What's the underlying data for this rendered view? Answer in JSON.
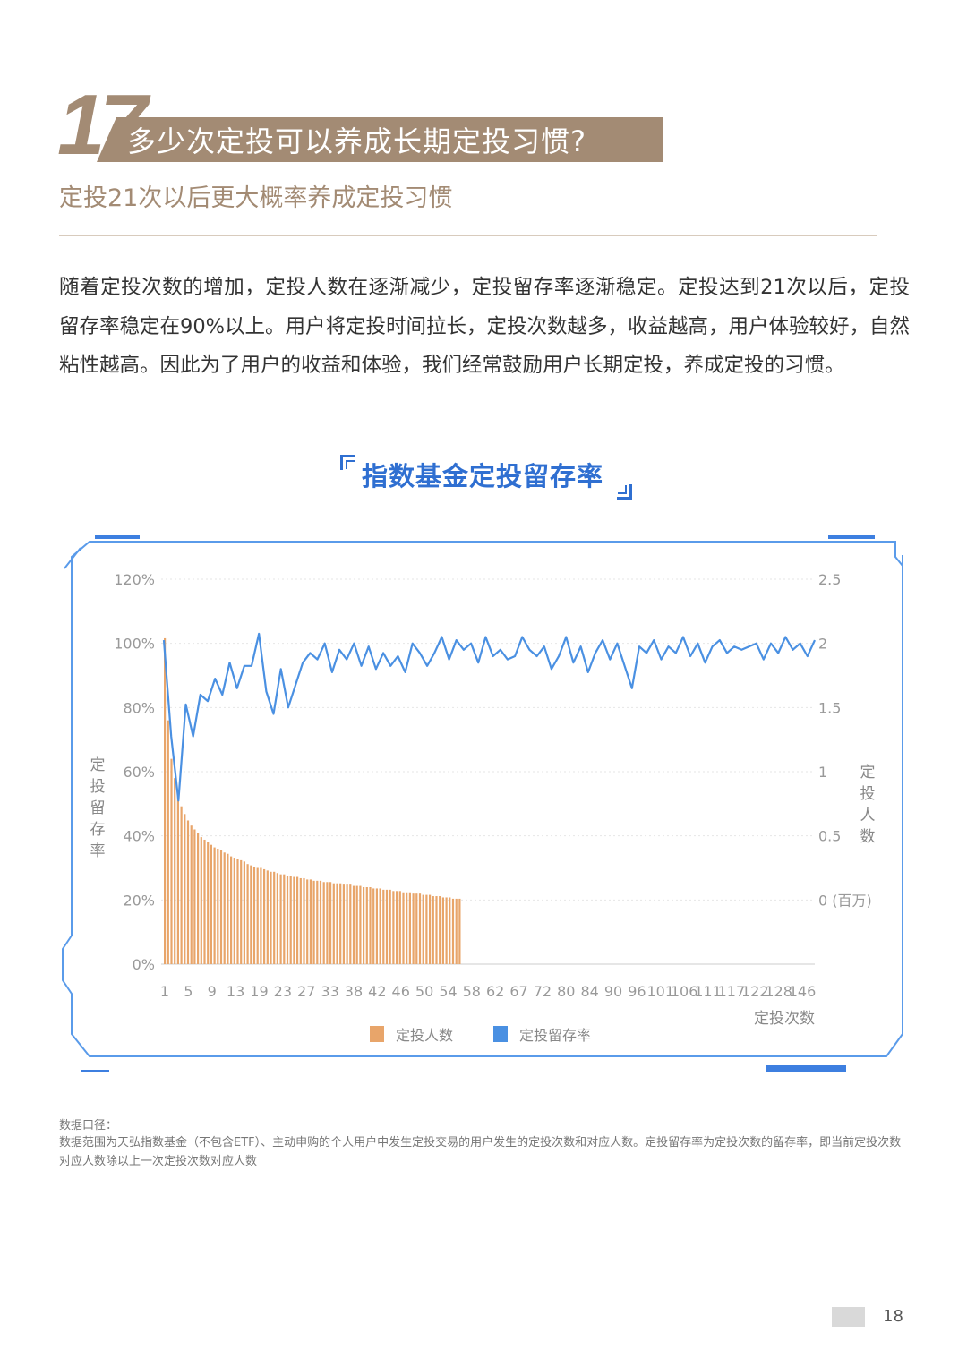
{
  "section": {
    "number": "17",
    "title": "多少次定投可以养成长期定投习惯?",
    "subtitle": "定投21次以后更大概率养成定投习惯"
  },
  "body_text": "随着定投次数的增加，定投人数在逐渐减少，定投留存率逐渐稳定。定投达到21次以后，定投留存率稳定在90%以上。用户将定投时间拉长，定投次数越多，收益越高，用户体验较好，自然粘性越高。因此为了用户的收益和体验，我们经常鼓励用户长期定投，养成定投的习惯。",
  "colors": {
    "accent_brown": "#a38b74",
    "accent_blue": "#2f6fd1",
    "bar_orange": "#e8a56a",
    "line_blue": "#4a90e2",
    "frame_blue": "#5a9bea"
  },
  "chart_data": {
    "type": "bar+line",
    "title": "指数基金定投留存率",
    "xlabel": "定投次数",
    "ylabel_left": "定投留存率",
    "ylabel_right": "定投人数",
    "right_unit": "(百万)",
    "ylim_left": [
      0,
      1.2
    ],
    "ylim_right": [
      -0.5,
      2.5
    ],
    "left_ticks": [
      "0%",
      "20%",
      "40%",
      "60%",
      "80%",
      "100%",
      "120%"
    ],
    "right_ticks": [
      "0.5",
      "1",
      "1.5",
      "2",
      "2.5"
    ],
    "right_zero_label": "0",
    "x_tick_labels": [
      "1",
      "5",
      "9",
      "13",
      "19",
      "23",
      "27",
      "33",
      "38",
      "42",
      "46",
      "50",
      "54",
      "58",
      "62",
      "67",
      "72",
      "80",
      "84",
      "90",
      "96",
      "101",
      "106",
      "111",
      "117",
      "122",
      "128",
      "146"
    ],
    "grid": true,
    "legend_position": "bottom",
    "series": [
      {
        "name": "定投人数",
        "axis": "right",
        "color": "#e8a56a",
        "values": [
          2.04,
          1.4,
          1.1,
          0.95,
          0.81,
          0.73,
          0.67,
          0.62,
          0.58,
          0.55,
          0.52,
          0.49,
          0.47,
          0.45,
          0.43,
          0.41,
          0.4,
          0.39,
          0.37,
          0.36,
          0.34,
          0.33,
          0.32,
          0.31,
          0.3,
          0.28,
          0.27,
          0.26,
          0.25,
          0.25,
          0.24,
          0.23,
          0.22,
          0.22,
          0.21,
          0.2,
          0.2,
          0.19,
          0.19,
          0.18,
          0.18,
          0.17,
          0.17,
          0.16,
          0.16,
          0.15,
          0.15,
          0.15,
          0.14,
          0.14,
          0.14,
          0.13,
          0.13,
          0.13,
          0.12,
          0.12,
          0.12,
          0.11,
          0.11,
          0.11,
          0.1,
          0.1,
          0.1,
          0.09,
          0.09,
          0.09,
          0.08,
          0.08,
          0.08,
          0.07,
          0.07,
          0.07,
          0.06,
          0.06,
          0.06,
          0.05,
          0.05,
          0.05,
          0.04,
          0.04,
          0.04,
          0.03,
          0.03,
          0.03,
          0.02,
          0.02,
          0.02,
          0.01,
          0.01,
          0.01
        ]
      },
      {
        "name": "定投留存率",
        "axis": "left",
        "color": "#4a90e2",
        "values": [
          1.01,
          0.71,
          0.51,
          0.81,
          0.71,
          0.84,
          0.82,
          0.89,
          0.84,
          0.94,
          0.86,
          0.93,
          0.93,
          1.03,
          0.85,
          0.78,
          0.92,
          0.8,
          0.87,
          0.94,
          0.97,
          0.95,
          1.0,
          0.91,
          0.98,
          0.95,
          1.0,
          0.93,
          0.99,
          0.92,
          0.97,
          0.93,
          0.96,
          0.91,
          1.0,
          0.97,
          0.93,
          0.97,
          1.02,
          0.95,
          1.01,
          0.98,
          1.0,
          0.94,
          1.02,
          0.96,
          0.98,
          0.95,
          0.96,
          1.02,
          0.98,
          0.96,
          0.99,
          0.92,
          0.96,
          1.02,
          0.94,
          0.99,
          0.91,
          0.97,
          1.01,
          0.95,
          1.0,
          0.93,
          0.86,
          0.99,
          0.97,
          1.01,
          0.95,
          0.99,
          0.97,
          1.02,
          0.96,
          1.0,
          0.94,
          0.99,
          1.01,
          0.97,
          0.99,
          0.98,
          0.99,
          1.0,
          0.95,
          1.0,
          0.97,
          1.02,
          0.98,
          1.0,
          0.96,
          1.01
        ]
      }
    ]
  },
  "footnote": {
    "title": "数据口径：",
    "text": "数据范围为天弘指数基金（不包含ETF）、主动申购的个人用户中发生定投交易的用户发生的定投次数和对应人数。定投留存率为定投次数的留存率，即当前定投次数对应人数除以上一次定投次数对应人数"
  },
  "page_number": "18"
}
